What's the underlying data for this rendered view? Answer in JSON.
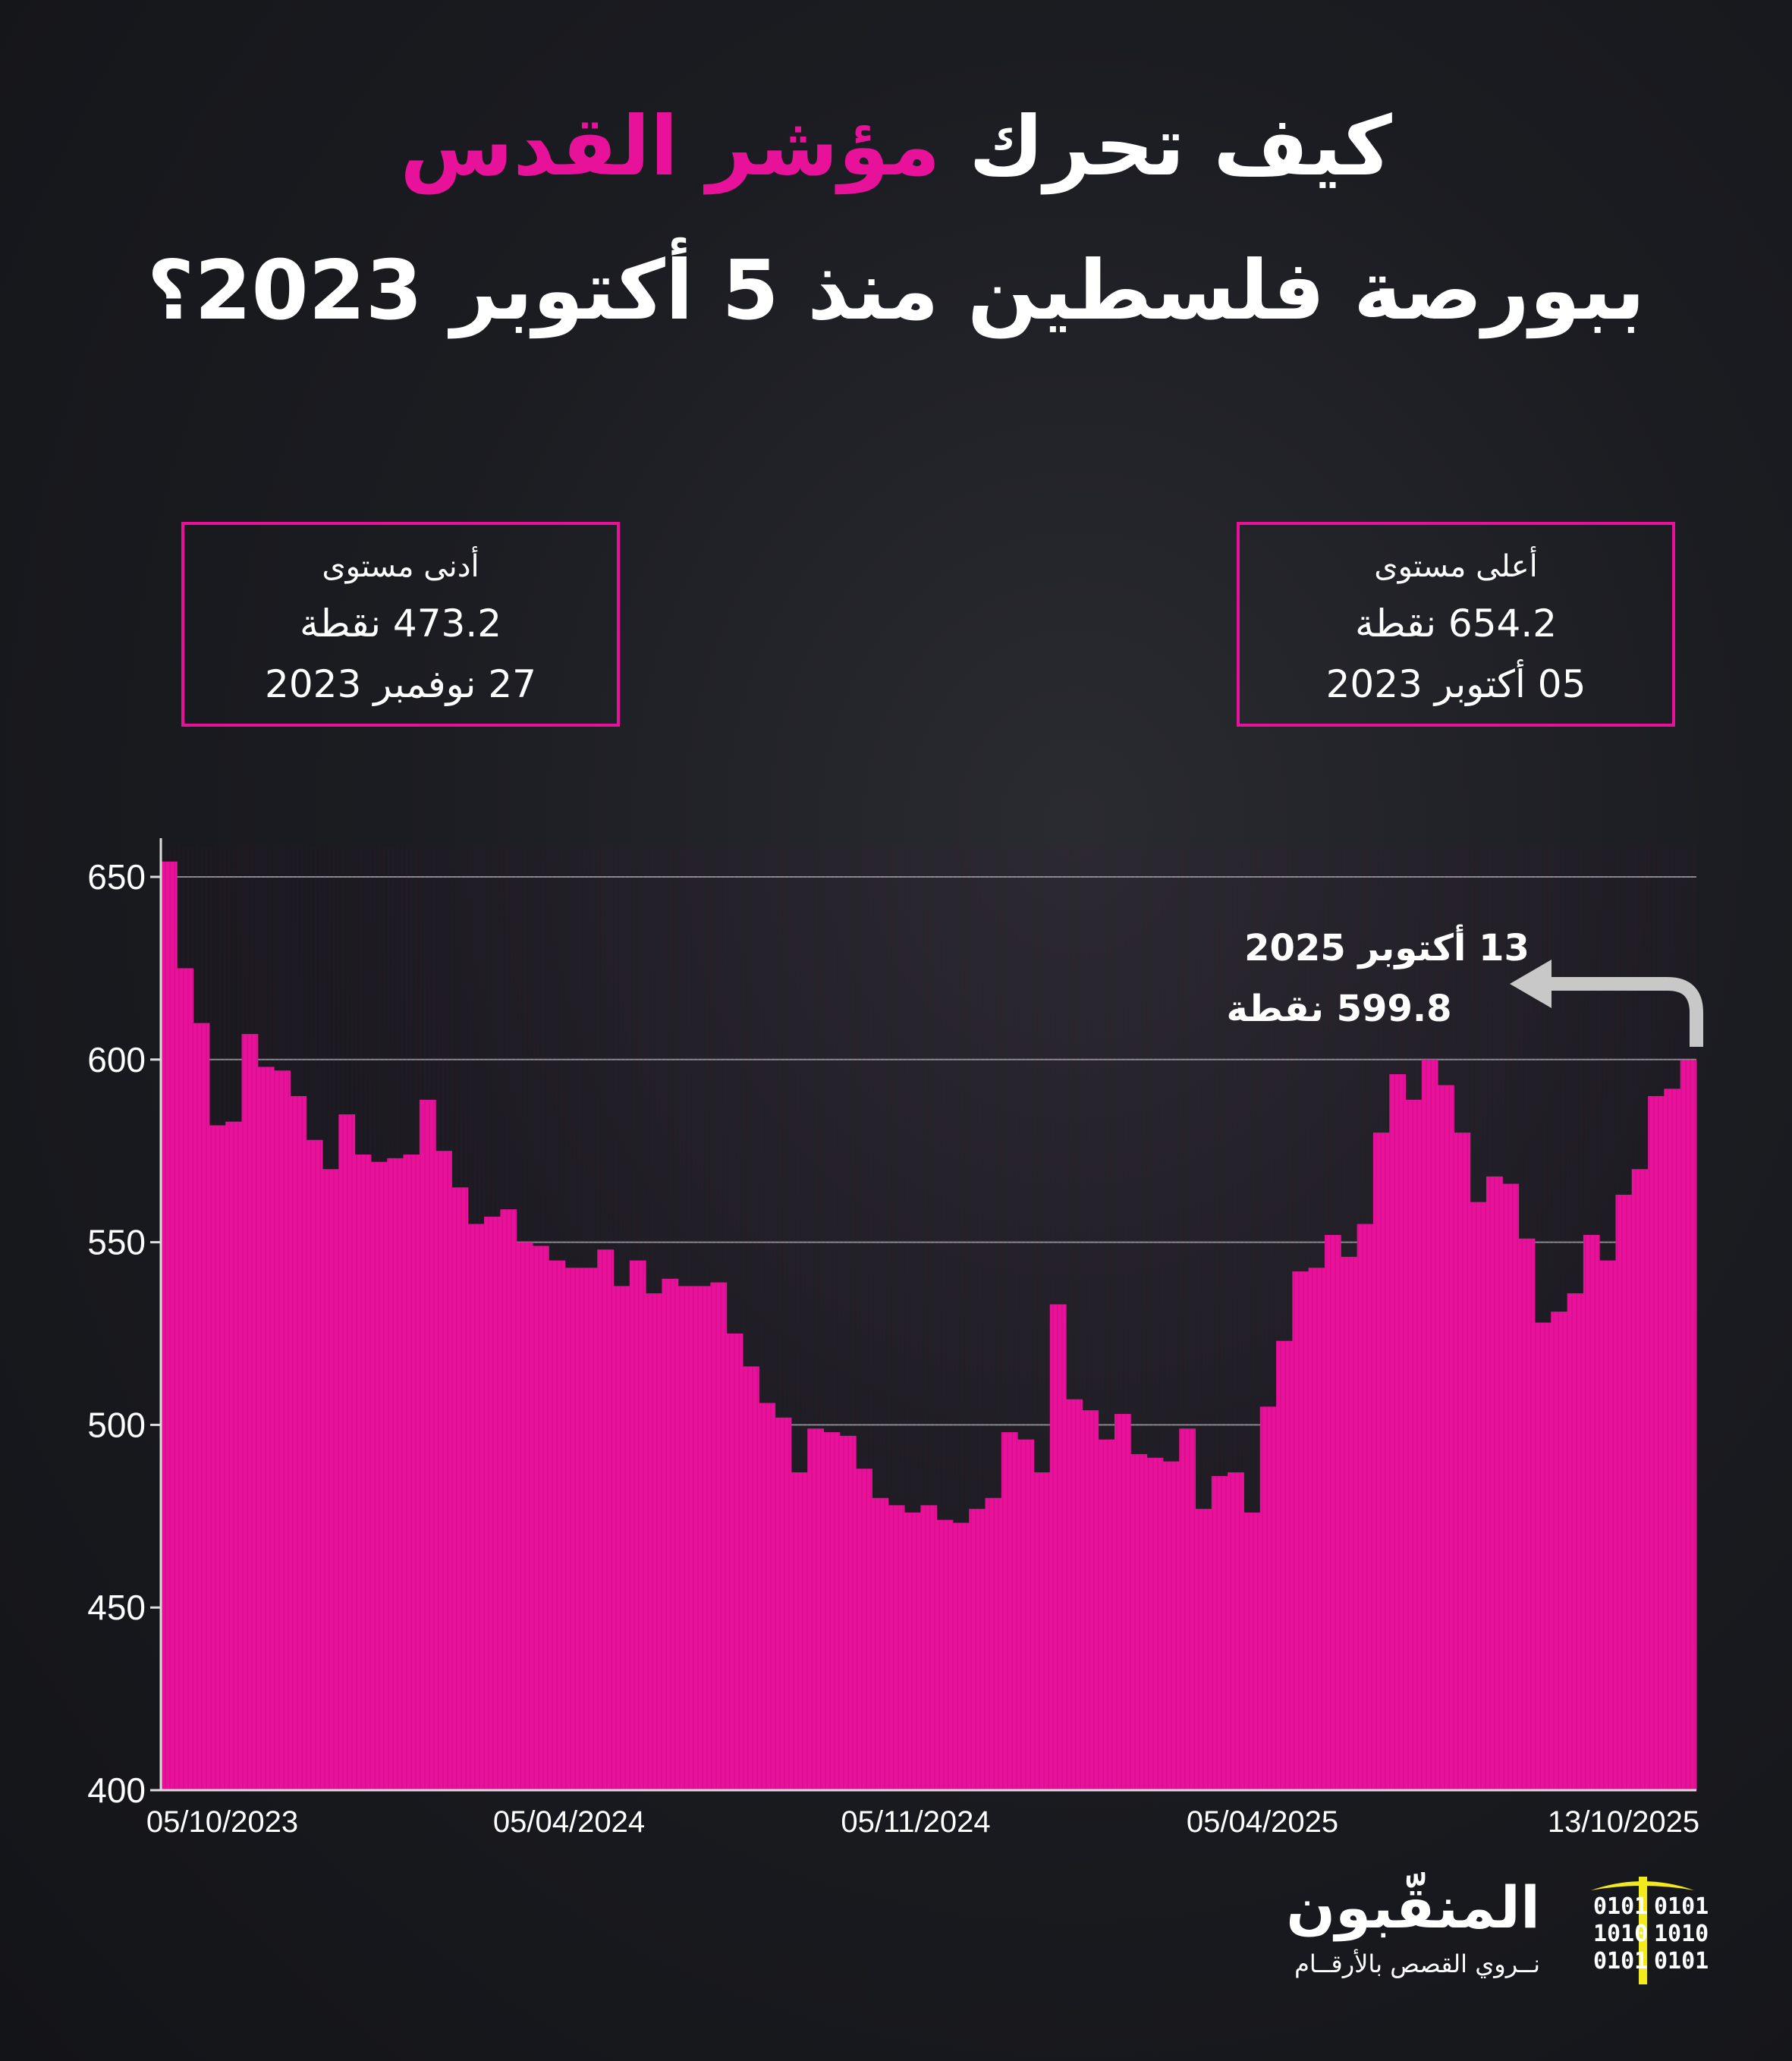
{
  "title": {
    "line1_prefix": "كيف تحرك ",
    "line1_highlight": "مؤشر القدس",
    "line2": "ببورصة فلسطين منذ 5 أكتوبر 2023؟"
  },
  "colors": {
    "accent": "#e8129a",
    "background": "#16171c",
    "arrow": "#c8c8c8",
    "logo_pick": "#f2ea1d"
  },
  "box_min": {
    "label": "أدنى مستوى",
    "value": "473.2 نقطة",
    "date": "27 نوفمبر 2023"
  },
  "box_max": {
    "label": "أعلى مستوى",
    "value": "654.2 نقطة",
    "date": "05 أكتوبر 2023"
  },
  "annotation": {
    "date": "13 أكتوبر 2025",
    "value": "599.8 نقطة",
    "icon": "curved-arrow-left-icon"
  },
  "logo": {
    "name": "المنقّبون",
    "tagline": "نــروي القصص بالأرقــام",
    "binary": [
      "0101",
      "1010",
      "0101"
    ]
  },
  "chart_data": {
    "type": "bar",
    "ylim": [
      400,
      660
    ],
    "yticks": [
      400,
      450,
      500,
      550,
      600,
      650
    ],
    "grid": true,
    "xtick_labels": [
      "05/10/2023",
      "05/04/2024",
      "05/11/2024",
      "05/04/2025",
      "13/10/2025"
    ],
    "values": [
      654.2,
      625,
      610,
      582,
      583,
      607,
      598,
      597,
      590,
      578,
      570,
      585,
      574,
      572,
      573,
      574,
      589,
      575,
      565,
      555,
      557,
      559,
      550,
      549,
      545,
      543,
      543,
      548,
      538,
      545,
      536,
      540,
      538,
      538,
      539,
      525,
      516,
      506,
      502,
      487,
      499,
      498,
      497,
      488,
      480,
      478,
      476,
      478,
      474,
      473.2,
      477,
      480,
      498,
      496,
      487,
      533,
      507,
      504,
      496,
      503,
      492,
      491,
      490,
      499,
      477,
      486,
      487,
      476,
      505,
      523,
      542,
      543,
      552,
      546,
      555,
      580,
      596,
      589,
      600,
      593,
      580,
      561,
      568,
      566,
      551,
      528,
      531,
      536,
      552,
      545,
      563,
      570,
      590,
      592,
      599.8
    ]
  }
}
